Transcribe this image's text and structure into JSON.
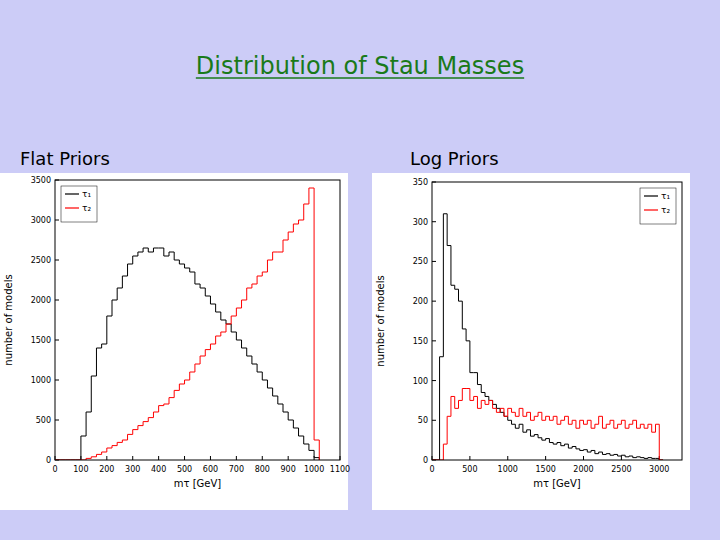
{
  "header": {
    "title": "Distribution of Stau Masses"
  },
  "chart_data": [
    {
      "type": "histogram",
      "title": "Flat Priors",
      "x_label": "mτ [GeV]",
      "y_label": "number of models",
      "bins": [
        0,
        20,
        40,
        60,
        80,
        100,
        120,
        140,
        160,
        180,
        200,
        220,
        240,
        260,
        280,
        300,
        320,
        340,
        360,
        380,
        400,
        420,
        440,
        460,
        480,
        500,
        520,
        540,
        560,
        580,
        600,
        620,
        640,
        660,
        680,
        700,
        720,
        740,
        760,
        780,
        800,
        820,
        840,
        860,
        880,
        900,
        920,
        940,
        960,
        980,
        1000,
        1020
      ],
      "series": [
        {
          "name": "τ₁",
          "color": "#000000",
          "values": [
            0,
            0,
            0,
            0,
            0,
            300,
            600,
            1050,
            1400,
            1450,
            1800,
            2000,
            2150,
            2300,
            2450,
            2550,
            2600,
            2650,
            2600,
            2650,
            2650,
            2550,
            2600,
            2500,
            2450,
            2400,
            2350,
            2200,
            2150,
            2050,
            1950,
            1850,
            1750,
            1700,
            1600,
            1500,
            1400,
            1300,
            1200,
            1100,
            1000,
            900,
            800,
            700,
            600,
            500,
            400,
            300,
            200,
            120,
            30
          ]
        },
        {
          "name": "τ₂",
          "color": "#ff0000",
          "values": [
            0,
            0,
            0,
            0,
            0,
            0,
            20,
            40,
            70,
            100,
            150,
            180,
            220,
            250,
            320,
            380,
            430,
            480,
            530,
            600,
            680,
            700,
            780,
            870,
            950,
            1000,
            1100,
            1200,
            1300,
            1380,
            1450,
            1550,
            1600,
            1700,
            1800,
            1900,
            2000,
            2150,
            2200,
            2300,
            2350,
            2500,
            2600,
            2600,
            2750,
            2850,
            2950,
            3000,
            3200,
            3400,
            250
          ]
        }
      ],
      "xlim": [
        0,
        1100
      ],
      "xticks": [
        0,
        100,
        200,
        300,
        400,
        500,
        600,
        700,
        800,
        900,
        1000,
        1100
      ],
      "ylim": [
        0,
        3500
      ],
      "yticks": [
        0,
        500,
        1000,
        1500,
        2000,
        2500,
        3000,
        3500
      ],
      "grid": false,
      "legend": "upper left"
    },
    {
      "type": "histogram",
      "title": "Log Priors",
      "x_label": "mτ [GeV]",
      "y_label": "number of models",
      "bins": [
        0,
        50,
        100,
        150,
        200,
        250,
        300,
        350,
        400,
        450,
        500,
        550,
        600,
        650,
        700,
        750,
        800,
        850,
        900,
        950,
        1000,
        1050,
        1100,
        1150,
        1200,
        1250,
        1300,
        1350,
        1400,
        1450,
        1500,
        1550,
        1600,
        1650,
        1700,
        1750,
        1800,
        1850,
        1900,
        1950,
        2000,
        2050,
        2100,
        2150,
        2200,
        2250,
        2300,
        2350,
        2400,
        2450,
        2500,
        2550,
        2600,
        2650,
        2700,
        2750,
        2800,
        2850,
        2900,
        2950,
        3000,
        3050
      ],
      "series": [
        {
          "name": "τ₁",
          "color": "#000000",
          "values": [
            0,
            0,
            130,
            310,
            270,
            220,
            215,
            200,
            165,
            150,
            110,
            110,
            95,
            85,
            80,
            75,
            70,
            65,
            60,
            55,
            50,
            45,
            40,
            45,
            35,
            38,
            30,
            32,
            28,
            25,
            27,
            22,
            20,
            22,
            18,
            20,
            15,
            17,
            14,
            12,
            13,
            10,
            12,
            8,
            10,
            7,
            8,
            6,
            7,
            5,
            6,
            4,
            5,
            3,
            4,
            3,
            2,
            3,
            2,
            2,
            0
          ]
        },
        {
          "name": "τ₂",
          "color": "#ff0000",
          "values": [
            0,
            0,
            0,
            20,
            55,
            80,
            65,
            75,
            90,
            90,
            75,
            80,
            65,
            75,
            70,
            75,
            65,
            60,
            65,
            55,
            65,
            60,
            55,
            65,
            55,
            60,
            50,
            55,
            60,
            50,
            55,
            50,
            55,
            45,
            50,
            55,
            45,
            50,
            40,
            50,
            45,
            50,
            40,
            45,
            55,
            40,
            45,
            50,
            40,
            45,
            50,
            40,
            45,
            50,
            40,
            45,
            40,
            45,
            35,
            45,
            0
          ]
        }
      ],
      "xlim": [
        0,
        3300
      ],
      "xticks": [
        0,
        500,
        1000,
        1500,
        2000,
        2500,
        3000
      ],
      "ylim": [
        0,
        350
      ],
      "yticks": [
        0,
        50,
        100,
        150,
        200,
        250,
        300,
        350
      ],
      "grid": false,
      "legend": "upper right"
    }
  ]
}
